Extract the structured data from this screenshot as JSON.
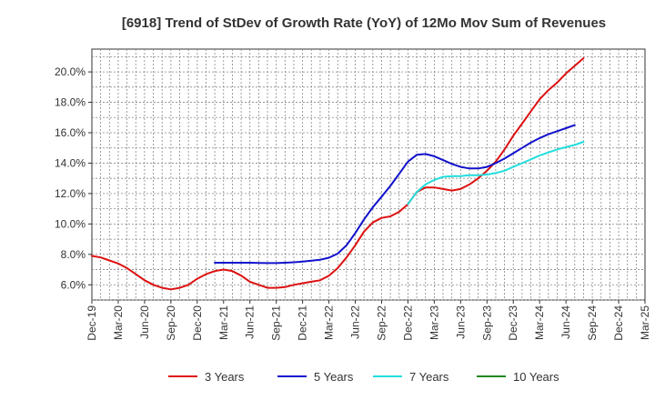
{
  "chart_data": {
    "type": "line",
    "title": "[6918]  Trend of StDev of Growth Rate (YoY) of 12Mo Mov Sum of Revenues",
    "xlabel": "",
    "ylabel": "",
    "ylim": [
      5.0,
      21.5
    ],
    "yticks": [
      6.0,
      8.0,
      10.0,
      12.0,
      14.0,
      16.0,
      18.0,
      20.0
    ],
    "ytick_labels": [
      "6.0%",
      "8.0%",
      "10.0%",
      "12.0%",
      "14.0%",
      "16.0%",
      "18.0%",
      "20.0%"
    ],
    "xticks": [
      "Dec-19",
      "Mar-20",
      "Jun-20",
      "Sep-20",
      "Dec-20",
      "Mar-21",
      "Jun-21",
      "Sep-21",
      "Dec-21",
      "Mar-22",
      "Jun-22",
      "Sep-22",
      "Dec-22",
      "Mar-23",
      "Jun-23",
      "Sep-23",
      "Dec-23",
      "Mar-24",
      "Jun-24",
      "Sep-24",
      "Dec-24",
      "Mar-25"
    ],
    "grid": true,
    "legend_position": "bottom",
    "series": [
      {
        "name": "3 Years",
        "color": "#dd1111",
        "start_index": 0,
        "values": [
          7.9,
          7.8,
          7.6,
          7.4,
          7.1,
          6.7,
          6.3,
          6.0,
          5.8,
          5.7,
          5.8,
          6.0,
          6.4,
          6.7,
          6.9,
          7.0,
          6.9,
          6.6,
          6.2,
          6.0,
          5.8,
          5.8,
          5.85,
          6.0,
          6.1,
          6.2,
          6.3,
          6.6,
          7.1,
          7.8,
          8.6,
          9.5,
          10.1,
          10.4,
          10.5,
          10.8,
          11.3,
          12.1,
          12.4,
          12.4,
          12.3,
          12.2,
          12.3,
          12.6,
          13.0,
          13.5,
          14.1,
          14.9,
          15.8,
          16.6,
          17.4,
          18.2,
          18.8,
          19.3,
          19.9,
          20.4,
          20.9
        ]
      },
      {
        "name": "5 Years",
        "color": "#1111cc",
        "start_index": 14,
        "values": [
          7.45,
          7.45,
          7.45,
          7.45,
          7.45,
          7.44,
          7.43,
          7.43,
          7.45,
          7.48,
          7.53,
          7.58,
          7.65,
          7.78,
          8.05,
          8.6,
          9.4,
          10.3,
          11.1,
          11.8,
          12.5,
          13.3,
          14.1,
          14.55,
          14.6,
          14.45,
          14.2,
          13.95,
          13.75,
          13.65,
          13.65,
          13.75,
          14.0,
          14.3,
          14.65,
          15.0,
          15.35,
          15.65,
          15.9,
          16.1,
          16.3,
          16.5
        ]
      },
      {
        "name": "7 Years",
        "color": "#22dddd",
        "start_index": 36,
        "values": [
          11.3,
          12.1,
          12.6,
          12.9,
          13.1,
          13.15,
          13.15,
          13.2,
          13.2,
          13.25,
          13.35,
          13.5,
          13.75,
          14.0,
          14.25,
          14.5,
          14.7,
          14.9,
          15.05,
          15.2,
          15.4
        ]
      },
      {
        "name": "10 Years",
        "color": "#228822",
        "start_index": 0,
        "values": []
      }
    ]
  }
}
